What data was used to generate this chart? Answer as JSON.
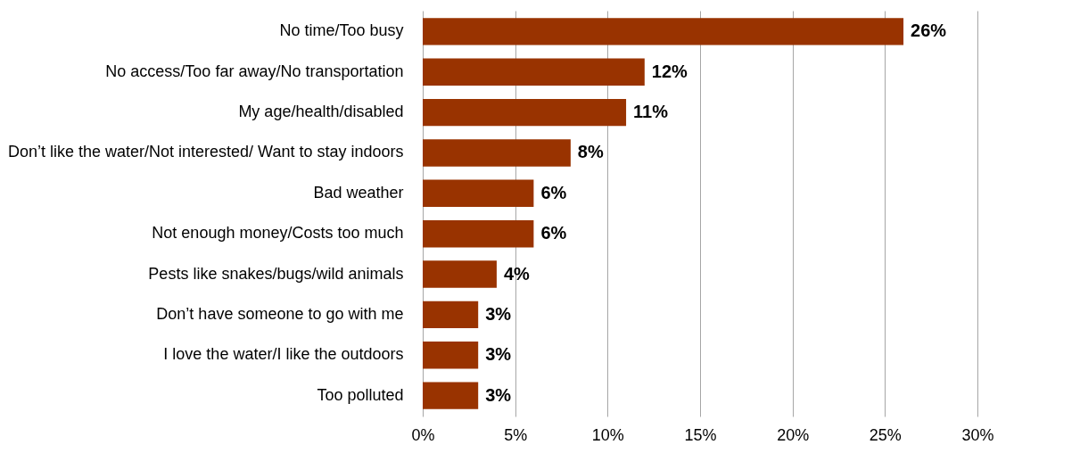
{
  "chart_data": {
    "type": "bar",
    "orientation": "horizontal",
    "categories": [
      "No time/Too busy",
      "No access/Too far away/No transportation",
      "My age/health/disabled",
      "Don’t like the water/Not interested/ Want to stay indoors",
      "Bad weather",
      "Not enough money/Costs too much",
      "Pests like snakes/bugs/wild animals",
      "Don’t have someone to go with me",
      "I love the water/I like the outdoors",
      "Too polluted"
    ],
    "values": [
      26,
      12,
      11,
      8,
      6,
      6,
      4,
      3,
      3,
      3
    ],
    "value_labels": [
      "26%",
      "12%",
      "11%",
      "8%",
      "6%",
      "6%",
      "4%",
      "3%",
      "3%",
      "3%"
    ],
    "color": "#993300",
    "xlim": [
      0,
      30
    ],
    "xticks": [
      {
        "value": 0,
        "label": "0%"
      },
      {
        "value": 5,
        "label": "5%"
      },
      {
        "value": 10,
        "label": "10%"
      },
      {
        "value": 15,
        "label": "15%"
      },
      {
        "value": 20,
        "label": "20%"
      },
      {
        "value": 25,
        "label": "25%"
      },
      {
        "value": 30,
        "label": "30%"
      }
    ],
    "grid": "x"
  }
}
